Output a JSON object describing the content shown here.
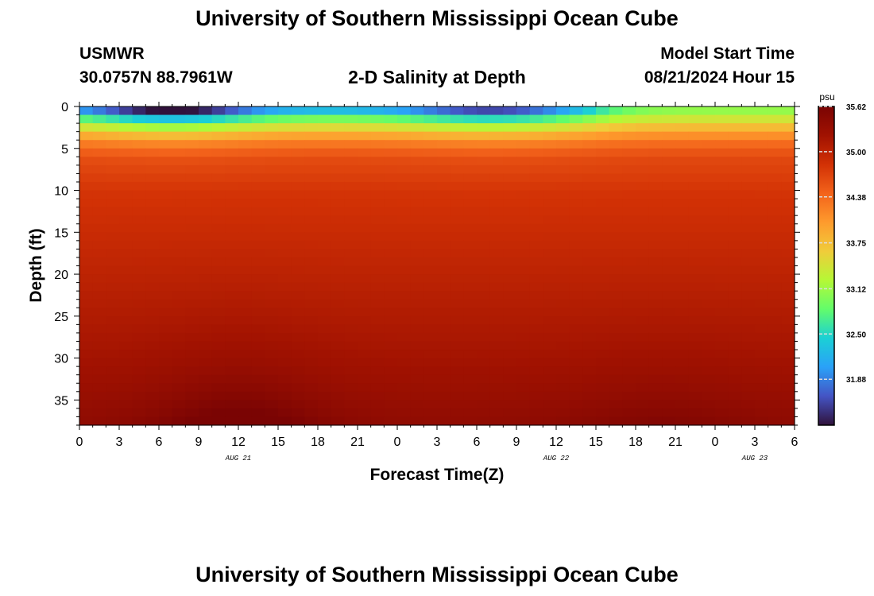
{
  "header": {
    "title": "University of Southern Mississippi Ocean Cube",
    "station_id": "USMWR",
    "station_coords": "30.0757N  88.7961W",
    "plot_title": "2-D Salinity at Depth",
    "model_label": "Model Start Time",
    "model_time": "08/21/2024 Hour 15"
  },
  "footer": {
    "title": "University of Southern Mississippi Ocean Cube"
  },
  "chart_data": {
    "type": "heatmap",
    "xlabel": "Forecast Time(Z)",
    "ylabel": "Depth (ft)",
    "x_ticks": [
      "0",
      "3",
      "6",
      "9",
      "12",
      "15",
      "18",
      "21",
      "0",
      "3",
      "6",
      "9",
      "12",
      "15",
      "18",
      "21",
      "0",
      "3",
      "6"
    ],
    "x_range_hours": [
      0,
      54
    ],
    "date_labels": [
      {
        "label": "AUG 21",
        "hour": 12
      },
      {
        "label": "AUG 22",
        "hour": 36
      },
      {
        "label": "AUG 23",
        "hour": 51
      }
    ],
    "y_ticks": [
      "0",
      "5",
      "10",
      "15",
      "20",
      "25",
      "30",
      "35"
    ],
    "y_range": [
      0,
      38
    ],
    "y_inverted": true,
    "colorbar": {
      "unit": "psu",
      "min": 31.25,
      "max": 35.62,
      "tick_labels": [
        "35.62",
        "35.00",
        "34.38",
        "33.75",
        "33.12",
        "32.50",
        "31.88"
      ],
      "tick_values": [
        35.62,
        35.0,
        34.38,
        33.75,
        33.12,
        32.5,
        31.88
      ],
      "colors": [
        "#30123b",
        "#4454c4",
        "#2aa1f8",
        "#1bd0d5",
        "#62fc6b",
        "#b5f836",
        "#f0cc3a",
        "#fe9b2d",
        "#f3631b",
        "#d23105",
        "#a11201",
        "#7a0403"
      ]
    },
    "salinity_profile": {
      "depth_ft": [
        0,
        2,
        4,
        6,
        10,
        20,
        30,
        38
      ],
      "salinity_psu": [
        32.0,
        33.3,
        34.2,
        34.6,
        34.8,
        35.0,
        35.2,
        35.4
      ]
    }
  }
}
